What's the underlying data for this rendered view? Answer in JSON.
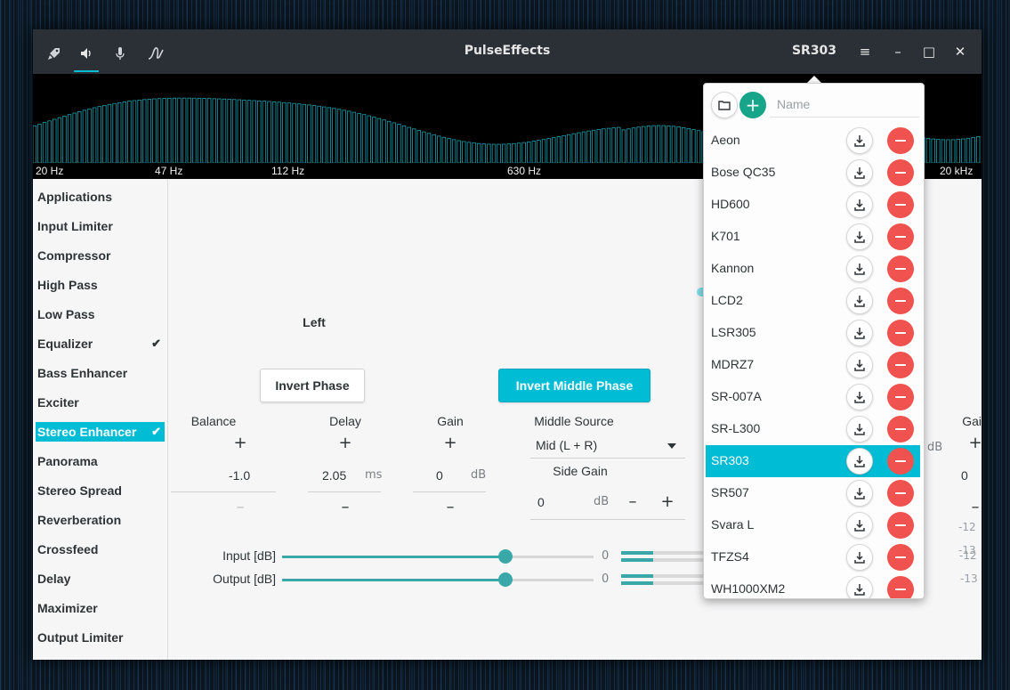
{
  "window": {
    "title": "PulseEffects",
    "preset_name": "SR303",
    "tabs": [
      {
        "name": "settings-tab",
        "icon": "rocket-icon"
      },
      {
        "name": "output-tab",
        "icon": "speaker-icon"
      },
      {
        "name": "input-tab",
        "icon": "microphone-icon"
      },
      {
        "name": "calibration-tab",
        "icon": "wave-icon"
      }
    ],
    "menu_glyph": "≡",
    "min_glyph": "–",
    "max_glyph": "□",
    "close_glyph": "✕"
  },
  "spectrum": {
    "color": "#16a0b0",
    "freq_labels": [
      "20 Hz",
      "47 Hz",
      "112 Hz",
      "630 Hz",
      "20 kHz"
    ]
  },
  "sidebar": {
    "items": [
      {
        "label": "Applications",
        "checked": false
      },
      {
        "label": "Input Limiter",
        "checked": false
      },
      {
        "label": "Compressor",
        "checked": false
      },
      {
        "label": "High Pass",
        "checked": false
      },
      {
        "label": "Low Pass",
        "checked": false
      },
      {
        "label": "Equalizer",
        "checked": true
      },
      {
        "label": "Bass Enhancer",
        "checked": false
      },
      {
        "label": "Exciter",
        "checked": false
      },
      {
        "label": "Stereo Enhancer",
        "checked": true,
        "selected": true
      },
      {
        "label": "Panorama",
        "checked": false
      },
      {
        "label": "Stereo Spread",
        "checked": false
      },
      {
        "label": "Reverberation",
        "checked": false
      },
      {
        "label": "Crossfeed",
        "checked": false
      },
      {
        "label": "Delay",
        "checked": false
      },
      {
        "label": "Maximizer",
        "checked": false
      },
      {
        "label": "Output Limiter",
        "checked": false
      }
    ],
    "check_glyph": "✔"
  },
  "stereo": {
    "left_title": "Left",
    "invert_phase": "Invert Phase",
    "invert_middle_phase": "Invert Middle Phase",
    "balance_label": "Balance",
    "balance_value": "-1.0",
    "delay_label": "Delay",
    "delay_value": "2.05",
    "delay_unit": "ms",
    "gain_label": "Gain",
    "gain_value": "0",
    "gain_unit": "dB",
    "middle_source_label": "Middle Source",
    "middle_source_value": "Mid (L + R)",
    "side_gain_label": "Side Gain",
    "side_gain_value": "0",
    "side_gain_unit": "dB",
    "right_gain_label": "Gain",
    "right_gain_value": "0",
    "right_gain_unit": "dB",
    "plus": "+",
    "minus": "–",
    "input_label": "Input [dB]",
    "output_label": "Output [dB]",
    "input_value": "0",
    "output_value": "0",
    "input_level_left": "-12",
    "input_level_right": "-12",
    "output_level_left": "-13",
    "output_level_right": "-13"
  },
  "presets": {
    "name_placeholder": "Name",
    "items": [
      "Aeon",
      "Bose QC35",
      "HD600",
      "K701",
      "Kannon",
      "LCD2",
      "LSR305",
      "MDRZ7",
      "SR-007A",
      "SR-L300",
      "SR303",
      "SR507",
      "Svara L",
      "TFZS4",
      "WH1000XM2"
    ],
    "selected": "SR303"
  }
}
